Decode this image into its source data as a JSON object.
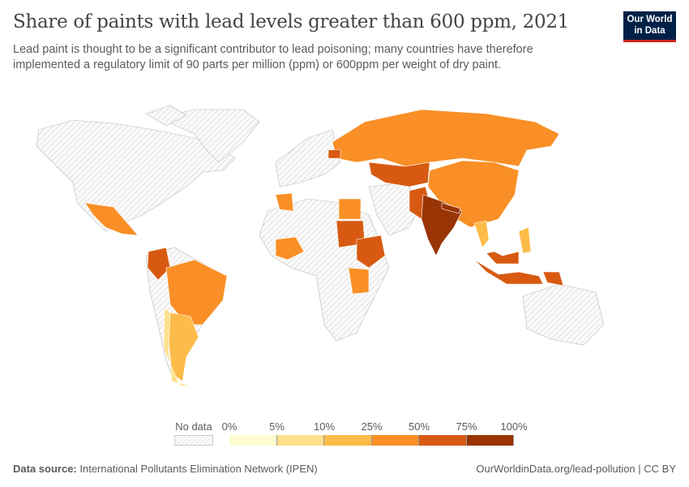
{
  "title": "Share of paints with lead levels greater than 600 ppm, 2021",
  "subtitle": "Lead paint is thought to be a significant contributor to lead poisoning; many countries have therefore implemented a regulatory limit of 90 parts per million (ppm) or 600ppm per weight of dry paint.",
  "logo": {
    "line1": "Our World",
    "line2": "in Data"
  },
  "legend": {
    "no_data_label": "No data",
    "ticks": [
      "0%",
      "5%",
      "10%",
      "25%",
      "50%",
      "75%",
      "100%"
    ],
    "colors": [
      "#fefdd0",
      "#fee08c",
      "#fdbb49",
      "#f98f26",
      "#d85a12",
      "#993404"
    ],
    "no_data_color": "#e6e6e6"
  },
  "chart_data": {
    "type": "choropleth",
    "bins_percent": [
      0,
      5,
      10,
      25,
      50,
      75,
      100
    ],
    "regions": [
      {
        "region": "Russia",
        "bin": 3
      },
      {
        "region": "China",
        "bin": 3
      },
      {
        "region": "Kazakhstan",
        "bin": 4
      },
      {
        "region": "India",
        "bin": 5
      },
      {
        "region": "Pakistan",
        "bin": 4
      },
      {
        "region": "Indonesia",
        "bin": 4
      },
      {
        "region": "Brazil",
        "bin": 3
      },
      {
        "region": "Argentina",
        "bin": 2
      },
      {
        "region": "Chile",
        "bin": 1
      },
      {
        "region": "Colombia",
        "bin": 4
      },
      {
        "region": "Mexico",
        "bin": 3
      },
      {
        "region": "Ethiopia",
        "bin": 4
      },
      {
        "region": "Sudan",
        "bin": 4
      },
      {
        "region": "Nigeria",
        "bin": 3
      },
      {
        "region": "Tanzania",
        "bin": 3
      },
      {
        "region": "Egypt",
        "bin": 3
      },
      {
        "region": "Algeria",
        "bin": 3
      },
      {
        "region": "Thailand",
        "bin": 2
      },
      {
        "region": "Philippines",
        "bin": 2
      },
      {
        "region": "Malaysia",
        "bin": 4
      },
      {
        "region": "Papua New Guinea",
        "bin": 4
      },
      {
        "region": "Belarus",
        "bin": 4
      },
      {
        "region": "Nepal",
        "bin": 5
      }
    ]
  },
  "footer": {
    "source_label": "Data source:",
    "source": "International Pollutants Elimination Network (IPEN)",
    "url": "OurWorldinData.org/lead-pollution | CC BY"
  }
}
